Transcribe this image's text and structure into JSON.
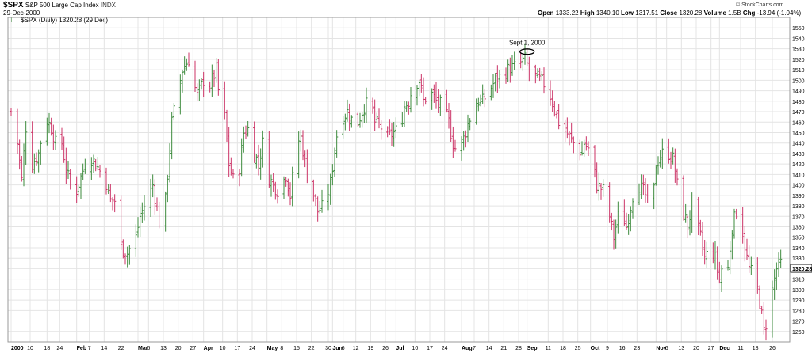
{
  "header": {
    "ticker": "$SPX",
    "name": "S&P 500 Large Cap Index",
    "exchange": "INDX",
    "date": "29-Dec-2000",
    "legend": "$SPX (Daily) 1320.28 (29 Dec)",
    "open_label": "Open",
    "open": "1333.22",
    "high_label": "High",
    "high": "1340.10",
    "low_label": "Low",
    "low": "1317.51",
    "close_label": "Close",
    "close": "1320.28",
    "volume_label": "Volume",
    "volume": "1.5B",
    "chg_label": "Chg",
    "chg": "-13.94 (-1.04%)",
    "watermark": "© StockCharts.com"
  },
  "colors": {
    "up": "#3d8b3d",
    "down": "#cc3366",
    "grid": "#e4e4e4",
    "frame": "#999999"
  },
  "chart_data": {
    "type": "ohlc",
    "title": "$SPX (Daily) 1320.28 (29 Dec)",
    "last_value": "1320.28",
    "ylim": [
      1250,
      1560
    ],
    "y_ticks": [
      1260,
      1270,
      1280,
      1290,
      1300,
      1310,
      1320,
      1330,
      1340,
      1350,
      1360,
      1370,
      1380,
      1390,
      1400,
      1410,
      1420,
      1430,
      1440,
      1450,
      1460,
      1470,
      1480,
      1490,
      1500,
      1510,
      1520,
      1530,
      1540,
      1550
    ],
    "x_tick_labels": [
      {
        "label": "2000",
        "day": 0
      },
      {
        "label": "10",
        "day": 9
      },
      {
        "label": "18",
        "day": 17
      },
      {
        "label": "24",
        "day": 23
      },
      {
        "label": "Feb",
        "day": 31
      },
      {
        "label": "7",
        "day": 37
      },
      {
        "label": "14",
        "day": 44
      },
      {
        "label": "22",
        "day": 52
      },
      {
        "label": "Mar",
        "day": 60
      },
      {
        "label": "6",
        "day": 65
      },
      {
        "label": "13",
        "day": 72
      },
      {
        "label": "20",
        "day": 79
      },
      {
        "label": "27",
        "day": 86
      },
      {
        "label": "Apr",
        "day": 91
      },
      {
        "label": "10",
        "day": 100
      },
      {
        "label": "17",
        "day": 107
      },
      {
        "label": "24",
        "day": 114
      },
      {
        "label": "May",
        "day": 121
      },
      {
        "label": "8",
        "day": 128
      },
      {
        "label": "15",
        "day": 135
      },
      {
        "label": "22",
        "day": 142
      },
      {
        "label": "30",
        "day": 150
      },
      {
        "label": "Jun",
        "day": 152
      },
      {
        "label": "6",
        "day": 157
      },
      {
        "label": "12",
        "day": 163
      },
      {
        "label": "19",
        "day": 170
      },
      {
        "label": "26",
        "day": 177
      },
      {
        "label": "Jul",
        "day": 182
      },
      {
        "label": "10",
        "day": 191
      },
      {
        "label": "17",
        "day": 198
      },
      {
        "label": "24",
        "day": 205
      },
      {
        "label": "Aug",
        "day": 213
      },
      {
        "label": "7",
        "day": 219
      },
      {
        "label": "14",
        "day": 226
      },
      {
        "label": "21",
        "day": 233
      },
      {
        "label": "28",
        "day": 240
      },
      {
        "label": "Sep",
        "day": 244
      },
      {
        "label": "11",
        "day": 254
      },
      {
        "label": "18",
        "day": 261
      },
      {
        "label": "25",
        "day": 268
      },
      {
        "label": "Oct",
        "day": 274
      },
      {
        "label": "9",
        "day": 282
      },
      {
        "label": "16",
        "day": 289
      },
      {
        "label": "23",
        "day": 296
      },
      {
        "label": "Nov",
        "day": 305
      },
      {
        "label": "6",
        "day": 310
      },
      {
        "label": "13",
        "day": 317
      },
      {
        "label": "20",
        "day": 324
      },
      {
        "label": "27",
        "day": 331
      },
      {
        "label": "Dec",
        "day": 335
      },
      {
        "label": "11",
        "day": 345
      },
      {
        "label": "18",
        "day": 352
      },
      {
        "label": "26",
        "day": 360
      }
    ],
    "anchors": [
      [
        0,
        1470
      ],
      [
        3,
        1440
      ],
      [
        5,
        1405
      ],
      [
        7,
        1455
      ],
      [
        9,
        1445
      ],
      [
        10,
        1420
      ],
      [
        13,
        1430
      ],
      [
        16,
        1465
      ],
      [
        19,
        1455
      ],
      [
        21,
        1440
      ],
      [
        24,
        1440
      ],
      [
        26,
        1415
      ],
      [
        28,
        1400
      ],
      [
        30,
        1400
      ],
      [
        31,
        1395
      ],
      [
        35,
        1420
      ],
      [
        37,
        1425
      ],
      [
        38,
        1425
      ],
      [
        40,
        1420
      ],
      [
        43,
        1410
      ],
      [
        44,
        1410
      ],
      [
        47,
        1385
      ],
      [
        50,
        1385
      ],
      [
        52,
        1340
      ],
      [
        55,
        1335
      ],
      [
        59,
        1350
      ],
      [
        61,
        1370
      ],
      [
        65,
        1390
      ],
      [
        67,
        1400
      ],
      [
        70,
        1365
      ],
      [
        72,
        1360
      ],
      [
        74,
        1410
      ],
      [
        76,
        1460
      ],
      [
        79,
        1490
      ],
      [
        81,
        1510
      ],
      [
        84,
        1520
      ],
      [
        86,
        1500
      ],
      [
        88,
        1485
      ],
      [
        91,
        1500
      ],
      [
        93,
        1490
      ],
      [
        97,
        1510
      ],
      [
        99,
        1470
      ],
      [
        101,
        1465
      ],
      [
        103,
        1420
      ],
      [
        105,
        1405
      ],
      [
        107,
        1400
      ],
      [
        110,
        1450
      ],
      [
        113,
        1455
      ],
      [
        115,
        1430
      ],
      [
        117,
        1420
      ],
      [
        119,
        1440
      ],
      [
        121,
        1410
      ],
      [
        124,
        1400
      ],
      [
        126,
        1395
      ],
      [
        128,
        1400
      ],
      [
        130,
        1410
      ],
      [
        132,
        1390
      ],
      [
        135,
        1440
      ],
      [
        137,
        1445
      ],
      [
        140,
        1410
      ],
      [
        142,
        1400
      ],
      [
        145,
        1375
      ],
      [
        148,
        1380
      ],
      [
        151,
        1400
      ],
      [
        153,
        1435
      ],
      [
        155,
        1460
      ],
      [
        159,
        1470
      ],
      [
        163,
        1455
      ],
      [
        167,
        1475
      ],
      [
        170,
        1480
      ],
      [
        172,
        1460
      ],
      [
        175,
        1455
      ],
      [
        178,
        1445
      ],
      [
        181,
        1450
      ],
      [
        184,
        1455
      ],
      [
        186,
        1475
      ],
      [
        188,
        1480
      ],
      [
        190,
        1495
      ],
      [
        193,
        1500
      ],
      [
        195,
        1480
      ],
      [
        198,
        1490
      ],
      [
        201,
        1480
      ],
      [
        204,
        1475
      ],
      [
        207,
        1460
      ],
      [
        209,
        1440
      ],
      [
        211,
        1430
      ],
      [
        214,
        1445
      ],
      [
        218,
        1470
      ],
      [
        221,
        1480
      ],
      [
        223,
        1480
      ],
      [
        226,
        1490
      ],
      [
        229,
        1500
      ],
      [
        232,
        1505
      ],
      [
        235,
        1510
      ],
      [
        237,
        1512
      ],
      [
        240,
        1515
      ],
      [
        243,
        1520
      ],
      [
        245,
        1510
      ],
      [
        247,
        1505
      ],
      [
        250,
        1500
      ],
      [
        253,
        1495
      ],
      [
        256,
        1480
      ],
      [
        259,
        1460
      ],
      [
        261,
        1455
      ],
      [
        264,
        1445
      ],
      [
        266,
        1440
      ],
      [
        268,
        1435
      ],
      [
        270,
        1430
      ],
      [
        271,
        1440
      ],
      [
        274,
        1430
      ],
      [
        277,
        1400
      ],
      [
        280,
        1395
      ],
      [
        282,
        1370
      ],
      [
        283,
        1370
      ],
      [
        285,
        1350
      ],
      [
        288,
        1380
      ],
      [
        291,
        1360
      ],
      [
        294,
        1390
      ],
      [
        297,
        1400
      ],
      [
        300,
        1390
      ],
      [
        303,
        1370
      ],
      [
        305,
        1420
      ],
      [
        308,
        1430
      ],
      [
        311,
        1430
      ],
      [
        313,
        1425
      ],
      [
        315,
        1400
      ],
      [
        317,
        1380
      ],
      [
        320,
        1360
      ],
      [
        322,
        1380
      ],
      [
        324,
        1360
      ],
      [
        326,
        1350
      ],
      [
        328,
        1330
      ],
      [
        331,
        1340
      ],
      [
        333,
        1330
      ],
      [
        335,
        1310
      ],
      [
        337,
        1330
      ],
      [
        339,
        1320
      ],
      [
        341,
        1360
      ],
      [
        343,
        1375
      ],
      [
        345,
        1370
      ],
      [
        347,
        1340
      ],
      [
        349,
        1320
      ],
      [
        352,
        1310
      ],
      [
        354,
        1290
      ],
      [
        356,
        1260
      ],
      [
        358,
        1275
      ],
      [
        360,
        1300
      ],
      [
        362,
        1320
      ],
      [
        364,
        1325
      ],
      [
        365,
        1320
      ]
    ],
    "annotations": [
      {
        "text": "Sept 1, 2000",
        "day": 244,
        "value": 1525
      }
    ]
  }
}
